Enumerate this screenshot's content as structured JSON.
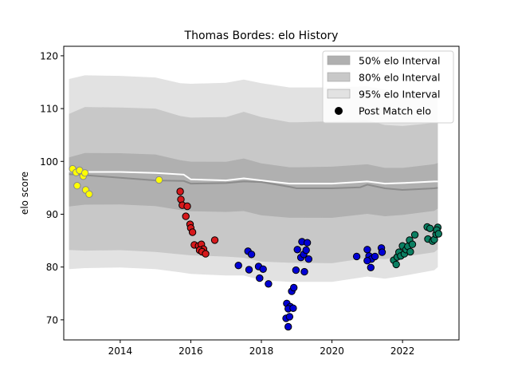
{
  "chart_data": {
    "type": "scatter",
    "title": "Thomas Bordes: elo History",
    "xlabel": "",
    "ylabel": "elo score",
    "xlim": [
      2012.4,
      2023.6
    ],
    "ylim": [
      66.2,
      121.8
    ],
    "xticks": [
      2014,
      2016,
      2018,
      2020,
      2022
    ],
    "yticks": [
      70,
      80,
      90,
      100,
      110,
      120
    ],
    "grid": false,
    "legend_position": "top-right",
    "legend": [
      {
        "label": "50% elo Interval",
        "kind": "patch",
        "color": "#b0b0b0"
      },
      {
        "label": "80% elo Interval",
        "kind": "patch",
        "color": "#c8c8c8"
      },
      {
        "label": "95% elo Interval",
        "kind": "patch",
        "color": "#e2e2e2"
      },
      {
        "label": "Post Match elo",
        "kind": "marker",
        "color": "#000000"
      }
    ],
    "bands": {
      "x": [
        2012.55,
        2013.0,
        2014.0,
        2015.0,
        2015.7,
        2016.0,
        2017.0,
        2017.5,
        2018.0,
        2018.8,
        2019.0,
        2020.0,
        2021.0,
        2021.5,
        2022.0,
        2022.9,
        2023.0
      ],
      "b95": {
        "upper": [
          115.6,
          116.3,
          116.2,
          115.9,
          114.8,
          114.7,
          114.9,
          115.5,
          114.8,
          114.0,
          114.0,
          114.0,
          114.2,
          113.6,
          113.3,
          113.5,
          113.5
        ],
        "lower": [
          79.6,
          79.8,
          79.9,
          79.6,
          79.0,
          78.7,
          78.4,
          78.4,
          77.5,
          77.2,
          77.2,
          77.2,
          78.2,
          77.8,
          78.3,
          79.4,
          80.0
        ]
      },
      "b80": {
        "upper": [
          109.0,
          110.3,
          110.2,
          110.0,
          108.6,
          108.3,
          108.4,
          109.4,
          108.4,
          107.4,
          107.4,
          107.6,
          107.8,
          106.9,
          106.7,
          107.3,
          107.4
        ]
      }
    },
    "series": [
      {
        "name": "",
        "kind": "line",
        "color": "#ffffff",
        "x": [
          2012.55,
          2013.0,
          2014.0,
          2015.0,
          2015.8,
          2016.0,
          2017.0,
          2017.5,
          2018.0,
          2018.8,
          2019.0,
          2020.0,
          2021.0,
          2021.5,
          2022.0,
          2022.9,
          2023.0
        ],
        "values": [
          98.2,
          98.0,
          98.0,
          97.8,
          97.5,
          96.6,
          96.4,
          96.8,
          96.4,
          95.8,
          95.8,
          95.8,
          96.2,
          95.8,
          95.9,
          96.2,
          96.2
        ]
      },
      {
        "name": "",
        "kind": "line",
        "color": "#8c8c8c",
        "x": [
          2012.55,
          2013.0,
          2014.0,
          2015.0,
          2015.8,
          2016.0,
          2017.0,
          2017.5,
          2018.0,
          2018.8,
          2019.0,
          2020.0,
          2020.8,
          2021.0,
          2021.5,
          2022.0,
          2022.9,
          2023.0
        ],
        "values": [
          97.6,
          97.4,
          96.9,
          96.4,
          96.3,
          95.8,
          95.9,
          96.2,
          96.1,
          95.2,
          94.9,
          94.9,
          95.1,
          95.6,
          94.9,
          94.6,
          94.9,
          95.0
        ]
      },
      {
        "name": "",
        "kind": "scatter",
        "color": "#ffff00",
        "edge": "#888888",
        "x": [
          2012.65,
          2012.75,
          2012.85,
          2012.95,
          2013.0,
          2012.78,
          2013.02,
          2013.12
        ],
        "values": [
          98.6,
          97.9,
          98.3,
          97.2,
          97.8,
          95.4,
          94.6,
          93.8
        ]
      },
      {
        "name": "",
        "kind": "scatter",
        "color": "#ffff00",
        "edge": "#888888",
        "x": [
          2015.1
        ],
        "values": [
          96.5
        ]
      },
      {
        "name": "",
        "kind": "scatter",
        "color": "#d7191c",
        "edge": "#000000",
        "x": [
          2015.7,
          2015.72,
          2015.76,
          2015.9,
          2015.86,
          2015.98,
          2016.0,
          2016.05,
          2016.1,
          2016.22,
          2016.3,
          2016.36,
          2016.25,
          2016.32,
          2016.42,
          2016.68
        ],
        "values": [
          94.3,
          92.8,
          91.7,
          91.5,
          89.6,
          88.1,
          87.4,
          86.6,
          84.2,
          84.0,
          84.3,
          83.4,
          83.2,
          82.9,
          82.5,
          85.1
        ]
      },
      {
        "name": "",
        "kind": "scatter",
        "color": "#0000d5",
        "edge": "#000000",
        "x": [
          2017.35,
          2017.62,
          2017.72,
          2017.65,
          2017.92,
          2018.05,
          2017.95,
          2018.2,
          2018.72,
          2018.82,
          2018.76,
          2018.9,
          2018.86,
          2018.7,
          2018.8,
          2018.76,
          2018.92,
          2019.02,
          2018.98,
          2019.15,
          2019.12,
          2019.2,
          2019.3,
          2019.27,
          2019.34,
          2019.22
        ],
        "values": [
          80.3,
          83.0,
          82.4,
          79.5,
          80.1,
          79.6,
          77.9,
          76.8,
          73.1,
          72.5,
          72.1,
          72.2,
          75.4,
          70.3,
          70.6,
          68.7,
          76.1,
          83.3,
          79.4,
          84.8,
          81.8,
          82.4,
          84.6,
          83.2,
          81.5,
          79.1
        ]
      },
      {
        "name": "",
        "kind": "scatter",
        "color": "#0000d5",
        "edge": "#000000",
        "x": [
          2020.7,
          2021.0,
          2021.05,
          2021.12,
          2021.0,
          2021.1,
          2021.22,
          2021.4,
          2021.42
        ],
        "values": [
          82.0,
          83.3,
          82.1,
          81.5,
          81.2,
          79.9,
          82.0,
          83.6,
          82.8
        ]
      },
      {
        "name": "",
        "kind": "scatter",
        "color": "#0b7f62",
        "edge": "#000000",
        "x": [
          2021.75,
          2021.82,
          2021.85,
          2021.9,
          2021.95,
          2022.0,
          2022.05,
          2022.1,
          2022.15,
          2022.2,
          2022.22,
          2022.28,
          2022.35,
          2022.7,
          2022.72,
          2022.78,
          2022.85,
          2022.9,
          2022.95,
          2023.0,
          2022.97,
          2023.02
        ],
        "values": [
          81.3,
          80.5,
          81.9,
          82.8,
          82.1,
          84.0,
          82.5,
          83.3,
          83.9,
          85.1,
          82.9,
          84.3,
          86.1,
          87.6,
          85.3,
          87.3,
          84.9,
          85.2,
          86.2,
          87.5,
          87.0,
          86.3
        ]
      }
    ]
  }
}
